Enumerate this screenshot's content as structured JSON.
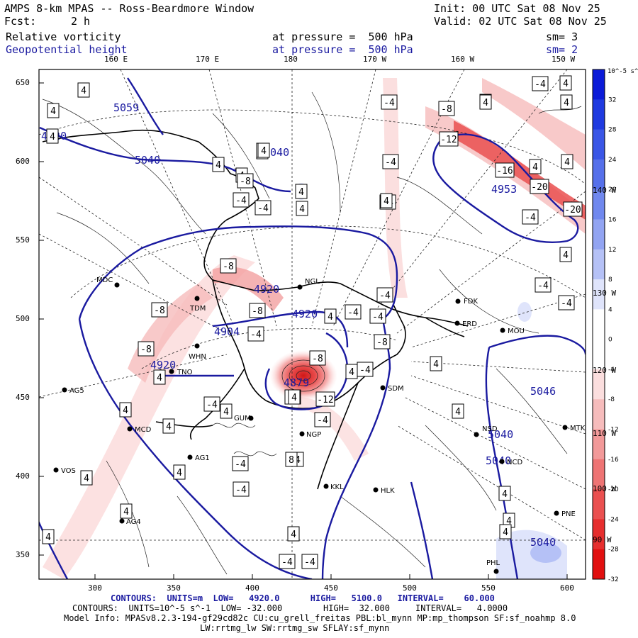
{
  "header": {
    "title": "AMPS 8-km MPAS -- Ross-Beardmore Window",
    "init": "Init: 00 UTC Sat 08 Nov 25",
    "fcst_label": "Fcst:",
    "fcst_value": "2 h",
    "valid": "Valid: 02 UTC Sat 08 Nov 25",
    "field1": "Relative vorticity",
    "field1_level": "at pressure =  500 hPa",
    "field1_sm": "sm= 3",
    "field2": "Geopotential height",
    "field2_level": "at pressure =  500 hPa",
    "field2_sm": "sm= 2"
  },
  "map": {
    "top_lon_labels": [
      "160 E",
      "170 E",
      "180",
      "170 W",
      "160 W",
      "150 W"
    ],
    "right_lon_labels": [
      "140 W",
      "130 W",
      "120 W",
      "110 W",
      "100 W",
      "90 W"
    ],
    "y_ticks": [
      "650",
      "600",
      "550",
      "500",
      "450",
      "400",
      "350"
    ],
    "x_ticks": [
      "300",
      "350",
      "400",
      "450",
      "500",
      "550",
      "600"
    ],
    "height_labels": [
      "5059",
      "5040",
      "5040",
      "4953",
      "4920",
      "4920",
      "4904",
      "4920",
      "4920",
      "4879",
      "5046",
      "5040",
      "5040",
      "5040"
    ],
    "vort_boxes": [
      "4",
      "4",
      "4",
      "4",
      "4",
      "-4",
      "-4",
      "4",
      "4",
      "-4",
      "-4",
      "4",
      "4",
      "-8",
      "-12",
      "-16",
      "-20",
      "-20",
      "-4",
      "4",
      "8",
      "-8",
      "4",
      "-4",
      "-4",
      "4",
      "-8",
      "-8",
      "-8",
      "-4",
      "4",
      "-4",
      "-4",
      "-8",
      "-8",
      "-12",
      "-8",
      "4",
      "-4",
      "-4",
      "4",
      "-4",
      "4",
      "4",
      "4",
      "4",
      "4",
      "4",
      "4",
      "-4",
      "-4",
      "4",
      "-8",
      "-4",
      "4",
      "-4",
      "4",
      "4",
      "4",
      "4",
      "4",
      "-4",
      "-4",
      "4",
      "4",
      "4",
      "-4",
      "4",
      "4",
      "8",
      "4"
    ],
    "stations": [
      "MDC",
      "TDM",
      "NGL",
      "FDK",
      "ERD",
      "MOU",
      "WHN",
      "TNO",
      "AG5",
      "SDM",
      "GUM",
      "MCD",
      "NGP",
      "AG1",
      "VOS",
      "HLK",
      "KKL",
      "AG4",
      "PHL",
      "NCD",
      "NSD",
      "MTK",
      "PNE"
    ]
  },
  "colorbar": {
    "unit": "10^-5 s^-1",
    "labels": [
      "32",
      "28",
      "24",
      "20",
      "16",
      "12",
      "8",
      "4",
      "0",
      "-4",
      "-8",
      "-12",
      "-16",
      "-20",
      "-24",
      "-28",
      "-32"
    ],
    "colors": [
      "#0b1bd8",
      "#1f3ae0",
      "#3a56e6",
      "#5670ea",
      "#7088ee",
      "#92a4f2",
      "#b5c1f6",
      "#dfe4fb",
      "#ffffff",
      "#ffffff",
      "#fbdede",
      "#f6bcbc",
      "#f29999",
      "#ee7474",
      "#ea5050",
      "#e62e2e",
      "#e11010"
    ]
  },
  "footer": {
    "line1_label": "CONTOURS:",
    "line1_units": "UNITS=m",
    "line1_low": "LOW=   4920.0",
    "line1_high": "HIGH=   5100.0",
    "line1_interval": "INTERVAL=    60.000",
    "line2": "CONTOURS:  UNITS=10^-5 s^-1  LOW= -32.000        HIGH=  32.000     INTERVAL=   4.0000",
    "line3": "Model Info: MPASv8.2.3-194-gf29cd82c CU:cu_grell_freitas PBL:bl_mynn MP:mp_thompson SF:sf_noahmp 8.0",
    "line4": "LW:rrtmg_lw SW:rrtmg_sw SFLAY:sf_mynn"
  }
}
